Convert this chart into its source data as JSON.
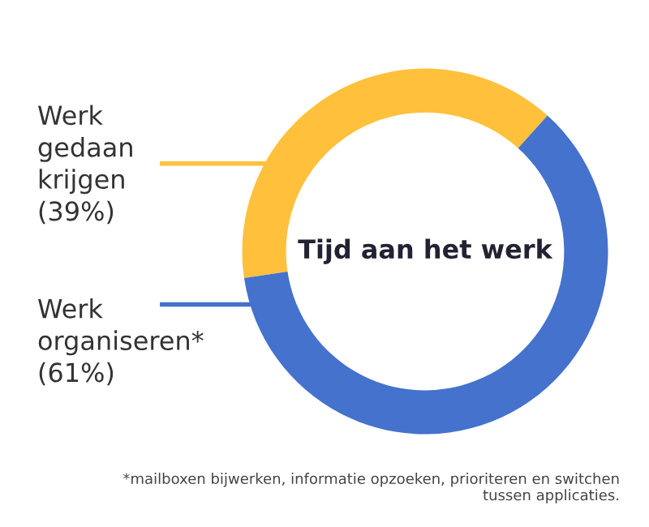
{
  "chart_data": {
    "type": "donut",
    "title": "Tijd aan het werk",
    "categories": [
      "Werk\ngedaan\nkrijgen",
      "Werk\norganiseren*"
    ],
    "values": [
      39,
      61
    ],
    "value_labels": [
      "(39%)",
      "(61%)"
    ],
    "colors": [
      "#ffc13b",
      "#4472cd"
    ],
    "annotations": [
      "*mailboxen bijwerken, informatie opzoeken, prioriteren en switchen\ntussen applicaties."
    ],
    "legend": false
  }
}
